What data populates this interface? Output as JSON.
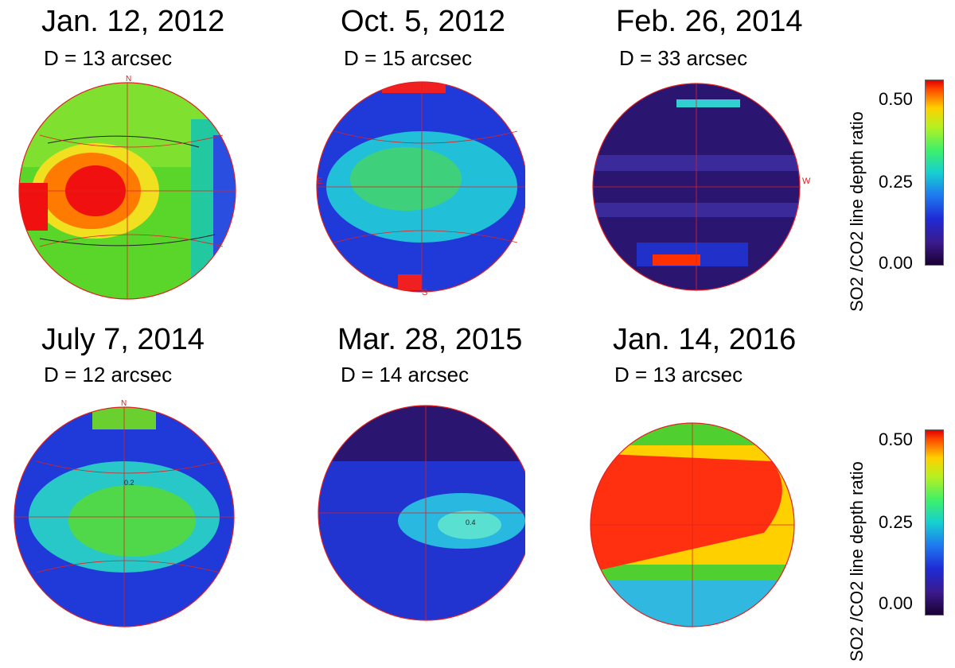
{
  "panels": [
    {
      "date": "Jan. 12, 2012",
      "diameter": "D = 13 arcsec"
    },
    {
      "date": "Oct. 5, 2012",
      "diameter": "D = 15 arcsec"
    },
    {
      "date": "Feb. 26, 2014",
      "diameter": "D = 33 arcsec"
    },
    {
      "date": "July 7, 2014",
      "diameter": "D = 12 arcsec"
    },
    {
      "date": "Mar. 28, 2015",
      "diameter": "D = 14 arcsec"
    },
    {
      "date": "Jan. 14, 2016",
      "diameter": "D = 13 arcsec"
    }
  ],
  "colorbar": {
    "label": "SO2 /CO2 line depth ratio",
    "ticks": [
      "0.50",
      "0.25",
      "0.00"
    ]
  },
  "disk_labels": {
    "north": "N",
    "south": "S",
    "east": "E",
    "west": "W"
  },
  "contour_labels": [
    "0.2",
    "0.4"
  ]
}
